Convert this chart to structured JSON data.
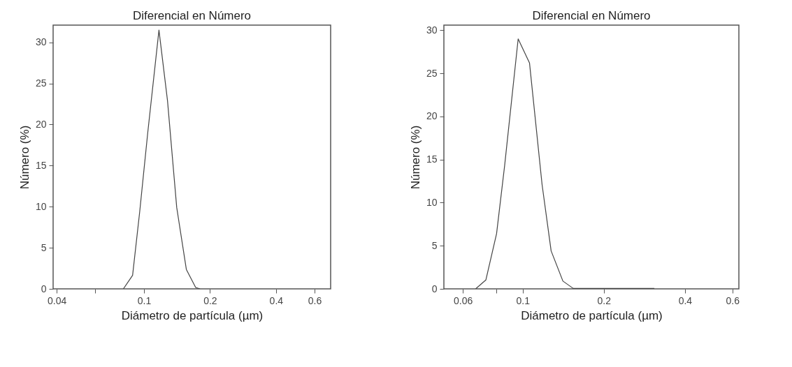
{
  "chart_data": [
    {
      "type": "line",
      "title": "Diferencial en Número",
      "xlabel": "Diámetro de partícula (µm)",
      "ylabel": "Número (%)",
      "log": "x",
      "grid": false,
      "marker": "none",
      "line_style": "solid",
      "xlim": [
        0.0385,
        0.71
      ],
      "xticks": [
        0.04,
        {
          "value": 0.06,
          "label": null
        },
        0.1,
        0.2,
        0.4,
        0.6
      ],
      "ylim": [
        0,
        32.1
      ],
      "yticks": [
        0,
        5,
        10,
        15,
        20,
        25,
        30
      ],
      "series": [
        {
          "color": "#444444",
          "x": [
            0.0805,
            0.0887,
            0.0955,
            0.104,
            0.117,
            0.128,
            0.141,
            0.156,
            0.172,
            0.18
          ],
          "values": [
            0,
            1.65,
            9.3,
            19.0,
            31.5,
            22.9,
            9.9,
            2.36,
            0.17,
            0
          ]
        }
      ]
    },
    {
      "type": "line",
      "title": "Diferencial en Número",
      "xlabel": "Diámetro de partícula (µm)",
      "ylabel": "Número (%)",
      "log": "x",
      "grid": false,
      "marker": "none",
      "line_style": "solid",
      "xlim": [
        0.051,
        0.634
      ],
      "xticks": [
        0.06,
        {
          "value": 0.08,
          "label": null
        },
        0.1,
        0.2,
        0.4,
        0.6
      ],
      "ylim": [
        0,
        30.6
      ],
      "yticks": [
        0,
        5,
        10,
        15,
        20,
        25,
        30
      ],
      "series": [
        {
          "color": "#444444",
          "x": [
            0.0669,
            0.073,
            0.08,
            0.0857,
            0.0962,
            0.106,
            0.118,
            0.1275,
            0.141,
            0.154,
            0.308
          ],
          "values": [
            0,
            1.03,
            6.4,
            14.3,
            29.0,
            26.2,
            12.1,
            4.4,
            0.9,
            0.05,
            0.05
          ]
        }
      ]
    }
  ]
}
